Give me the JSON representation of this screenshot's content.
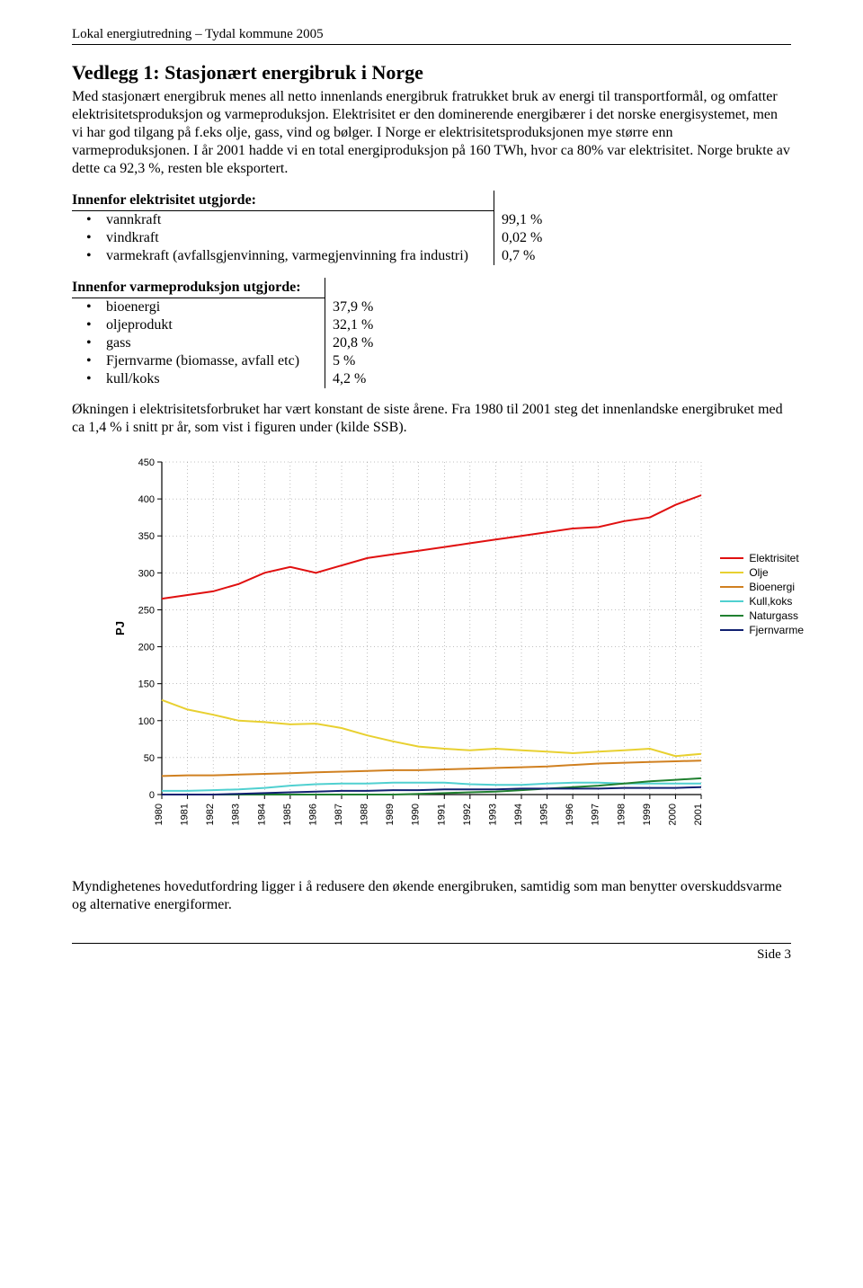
{
  "header": "Lokal energiutredning – Tydal kommune 2005",
  "heading": "Vedlegg 1:  Stasjonært energibruk i Norge",
  "para1": "Med stasjonært energibruk menes all netto innenlands energibruk fratrukket bruk av energi til transportformål, og omfatter elektrisitetsproduksjon og varmeproduksjon. Elektrisitet er den dominerende energibærer i det norske energisystemet, men vi har god tilgang på f.eks olje, gass, vind og bølger. I Norge er elektrisitetsproduksjonen mye større enn varmeproduksjonen. I år 2001 hadde vi en total energiproduksjon på 160 TWh, hvor ca 80% var elektrisitet. Norge brukte av dette ca 92,3 %, resten ble eksportert.",
  "elec_table": {
    "heading": "Innenfor elektrisitet utgjorde:",
    "rows": [
      {
        "label": "vannkraft",
        "value": "99,1 %"
      },
      {
        "label": "vindkraft",
        "value": "0,02 %"
      },
      {
        "label": "varmekraft (avfallsgjenvinning, varmegjenvinning fra industri)",
        "value": "0,7 %"
      }
    ]
  },
  "heat_table": {
    "heading": "Innenfor varmeproduksjon utgjorde:",
    "rows": [
      {
        "label": "bioenergi",
        "value": "37,9 %"
      },
      {
        "label": "oljeprodukt",
        "value": "32,1 %"
      },
      {
        "label": "gass",
        "value": "20,8 %"
      },
      {
        "label": "Fjernvarme (biomasse, avfall etc)",
        "value": "5 %"
      },
      {
        "label": "kull/koks",
        "value": "4,2 %"
      }
    ]
  },
  "para2": "Økningen i elektrisitetsforbruket har vært konstant de siste årene. Fra 1980 til 2001 steg det innenlandske energibruket med ca 1,4 % i snitt pr år, som vist i figuren under (kilde SSB).",
  "para3": "Myndighetenes hovedutfordring ligger i å redusere den økende energibruken, samtidig som man benytter overskuddsvarme og alternative energiformer.",
  "footer": "Side 3",
  "chart": {
    "type": "line",
    "ylabel": "PJ",
    "ylim": [
      0,
      450
    ],
    "ytick_step": 50,
    "yticks": [
      0,
      50,
      100,
      150,
      200,
      250,
      300,
      350,
      400,
      450
    ],
    "years": [
      1980,
      1981,
      1982,
      1983,
      1984,
      1985,
      1986,
      1987,
      1988,
      1989,
      1990,
      1991,
      1992,
      1993,
      1994,
      1995,
      1996,
      1997,
      1998,
      1999,
      2000,
      2001
    ],
    "background_color": "#ffffff",
    "grid_color": "#808080",
    "axis_color": "#000000",
    "tick_font": {
      "family": "Arial",
      "size": 11,
      "color": "#000000"
    },
    "line_width": 2,
    "series": [
      {
        "name": "Elektrisitet",
        "color": "#e01010",
        "values": [
          265,
          270,
          275,
          285,
          300,
          308,
          300,
          310,
          320,
          325,
          330,
          335,
          340,
          345,
          350,
          355,
          360,
          362,
          370,
          375,
          392,
          405
        ]
      },
      {
        "name": "Olje",
        "color": "#e8d030",
        "values": [
          128,
          115,
          108,
          100,
          98,
          95,
          96,
          90,
          80,
          72,
          65,
          62,
          60,
          62,
          60,
          58,
          56,
          58,
          60,
          62,
          52,
          55
        ]
      },
      {
        "name": "Bioenergi",
        "color": "#d08020",
        "values": [
          25,
          26,
          26,
          27,
          28,
          29,
          30,
          31,
          32,
          33,
          33,
          34,
          35,
          36,
          37,
          38,
          40,
          42,
          43,
          44,
          45,
          46
        ]
      },
      {
        "name": "Kull,koks",
        "color": "#50d0d0",
        "values": [
          5,
          5,
          6,
          7,
          9,
          12,
          14,
          15,
          15,
          16,
          16,
          16,
          14,
          13,
          13,
          15,
          16,
          16,
          15,
          15,
          15,
          15
        ]
      },
      {
        "name": "Naturgass",
        "color": "#208030",
        "values": [
          0,
          0,
          0,
          0,
          0,
          0,
          0,
          0,
          0,
          0,
          1,
          2,
          3,
          4,
          6,
          8,
          10,
          12,
          15,
          18,
          20,
          22
        ]
      },
      {
        "name": "Fjernvarme",
        "color": "#102070",
        "values": [
          0,
          0,
          0,
          1,
          2,
          3,
          4,
          5,
          5,
          6,
          6,
          7,
          7,
          7,
          8,
          8,
          8,
          8,
          9,
          9,
          9,
          10
        ]
      }
    ]
  }
}
